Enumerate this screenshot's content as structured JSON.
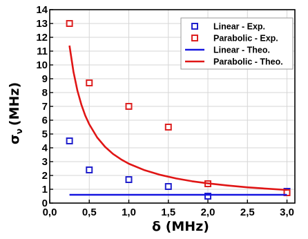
{
  "chart_data": {
    "type": "scatter",
    "xlabel": "δ (MHz)",
    "ylabel_main": "σ",
    "ylabel_sub": "ν",
    "ylabel_unit": "(MHz)",
    "xlim": [
      0,
      3.1
    ],
    "ylim": [
      0,
      14
    ],
    "x_ticks": [
      0,
      0.5,
      1.0,
      1.5,
      2.0,
      2.5,
      3.0
    ],
    "x_tick_labels": [
      "0,0",
      "0,5",
      "1,0",
      "1,5",
      "2,0",
      "2,5",
      "3,0"
    ],
    "y_ticks": [
      0,
      1,
      2,
      3,
      4,
      5,
      6,
      7,
      8,
      9,
      10,
      11,
      12,
      13,
      14
    ],
    "y_tick_labels": [
      "0",
      "1",
      "2",
      "3",
      "4",
      "5",
      "6",
      "7",
      "8",
      "9",
      "10",
      "11",
      "12",
      "13",
      "14"
    ],
    "grid": true,
    "legend_position": "top-right",
    "series": [
      {
        "name": "Linear - Exp.",
        "kind": "marker",
        "color": "#1f1fcc",
        "x": [
          0.25,
          0.5,
          1.0,
          1.5,
          2.0,
          3.0
        ],
        "y": [
          4.5,
          2.4,
          1.7,
          1.2,
          0.5,
          0.85
        ]
      },
      {
        "name": "Parabolic - Exp.",
        "kind": "marker",
        "color": "#dd2020",
        "x": [
          0.25,
          0.5,
          1.0,
          1.5,
          2.0,
          3.0
        ],
        "y": [
          13.0,
          8.7,
          7.0,
          5.5,
          1.4,
          0.75
        ]
      },
      {
        "name": "Linear - Theo.",
        "kind": "line",
        "color": "#1515e0",
        "x": [
          0.25,
          3.0
        ],
        "y": [
          0.6,
          0.6
        ]
      },
      {
        "name": "Parabolic - Theo.",
        "kind": "line",
        "color": "#e01515",
        "x": [
          0.25,
          0.3,
          0.35,
          0.4,
          0.45,
          0.5,
          0.6,
          0.7,
          0.8,
          0.9,
          1.0,
          1.2,
          1.4,
          1.6,
          1.8,
          2.0,
          2.25,
          2.5,
          2.75,
          3.0
        ],
        "y": [
          11.4,
          9.5,
          8.14,
          7.13,
          6.33,
          5.7,
          4.75,
          4.07,
          3.56,
          3.17,
          2.85,
          2.38,
          2.04,
          1.78,
          1.58,
          1.43,
          1.27,
          1.14,
          1.04,
          0.95
        ]
      }
    ]
  }
}
